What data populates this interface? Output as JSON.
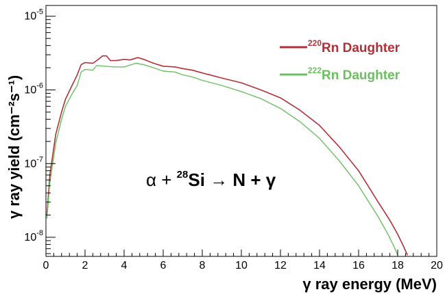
{
  "chart_data": {
    "type": "line",
    "xlabel": "γ ray energy (MeV)",
    "ylabel": "γ ray yield (cm⁻²s⁻¹)",
    "xlim": [
      0,
      20
    ],
    "ylim": [
      5.5e-09,
      1.4e-05
    ],
    "yscale": "log",
    "x_ticks": [
      0,
      2,
      4,
      6,
      8,
      10,
      12,
      14,
      16,
      18,
      20
    ],
    "y_ticks": [
      {
        "value": 1e-08,
        "base": "10",
        "exp": "-8"
      },
      {
        "value": 1e-07,
        "base": "10",
        "exp": "-7"
      },
      {
        "value": 1e-06,
        "base": "10",
        "exp": "-6"
      },
      {
        "value": 1e-05,
        "base": "10",
        "exp": "-5"
      }
    ],
    "legend_position": "top-right",
    "series": [
      {
        "name": "²²⁰Rn Daughter",
        "label_sup": "220",
        "label_text": "Rn Daughter",
        "color": "#b03038",
        "points": [
          [
            0.05,
            2e-08
          ],
          [
            0.2,
            7e-08
          ],
          [
            0.5,
            2.5e-07
          ],
          [
            0.8,
            5e-07
          ],
          [
            1.0,
            7.5e-07
          ],
          [
            1.3,
            1.1e-06
          ],
          [
            1.6,
            1.6e-06
          ],
          [
            1.8,
            2.2e-06
          ],
          [
            2.0,
            2.35e-06
          ],
          [
            2.4,
            2.3e-06
          ],
          [
            2.6,
            2.5e-06
          ],
          [
            2.9,
            2.9e-06
          ],
          [
            3.1,
            2.9e-06
          ],
          [
            3.3,
            2.5e-06
          ],
          [
            3.6,
            2.5e-06
          ],
          [
            4.0,
            2.6e-06
          ],
          [
            4.3,
            2.55e-06
          ],
          [
            4.7,
            2.75e-06
          ],
          [
            5.0,
            2.6e-06
          ],
          [
            5.5,
            2.3e-06
          ],
          [
            6.0,
            2.1e-06
          ],
          [
            6.6,
            2.05e-06
          ],
          [
            7.0,
            1.95e-06
          ],
          [
            7.5,
            1.85e-06
          ],
          [
            8.0,
            1.7e-06
          ],
          [
            9.0,
            1.45e-06
          ],
          [
            10.0,
            1.25e-06
          ],
          [
            11.0,
            1e-06
          ],
          [
            12.0,
            7.8e-07
          ],
          [
            13.0,
            5.3e-07
          ],
          [
            14.0,
            3.3e-07
          ],
          [
            15.0,
            1.7e-07
          ],
          [
            16.0,
            8e-08
          ],
          [
            17.0,
            3e-08
          ],
          [
            17.6,
            1.7e-08
          ],
          [
            18.0,
            1.1e-08
          ],
          [
            18.3,
            7.5e-09
          ],
          [
            18.5,
            5.7e-09
          ]
        ]
      },
      {
        "name": "²²²Rn Daughter",
        "label_sup": "222",
        "label_text": "Rn Daughter",
        "color": "#6abf5e",
        "points": [
          [
            0.05,
            1.8e-08
          ],
          [
            0.2,
            5.5e-08
          ],
          [
            0.5,
            1.9e-07
          ],
          [
            0.8,
            4e-07
          ],
          [
            1.0,
            6e-07
          ],
          [
            1.3,
            8.5e-07
          ],
          [
            1.6,
            1.15e-06
          ],
          [
            1.8,
            1.75e-06
          ],
          [
            2.0,
            1.9e-06
          ],
          [
            2.4,
            1.85e-06
          ],
          [
            2.6,
            2.15e-06
          ],
          [
            3.0,
            2.1e-06
          ],
          [
            3.5,
            2.05e-06
          ],
          [
            4.0,
            2.05e-06
          ],
          [
            4.6,
            2.3e-06
          ],
          [
            5.0,
            2.2e-06
          ],
          [
            5.5,
            2e-06
          ],
          [
            6.0,
            1.8e-06
          ],
          [
            6.6,
            1.75e-06
          ],
          [
            7.0,
            1.6e-06
          ],
          [
            7.5,
            1.5e-06
          ],
          [
            8.0,
            1.35e-06
          ],
          [
            9.0,
            1.15e-06
          ],
          [
            10.0,
            9.5e-07
          ],
          [
            11.0,
            7.6e-07
          ],
          [
            12.0,
            5.6e-07
          ],
          [
            13.0,
            3.7e-07
          ],
          [
            14.0,
            2.2e-07
          ],
          [
            15.0,
            1.1e-07
          ],
          [
            16.0,
            5e-08
          ],
          [
            17.0,
            1.9e-08
          ],
          [
            17.5,
            1.1e-08
          ],
          [
            17.8,
            7.6e-09
          ],
          [
            18.0,
            5.7e-09
          ]
        ]
      }
    ],
    "annotation": {
      "text_alpha": "α + ",
      "sup": "28",
      "text_rest": "Si → N + γ"
    }
  }
}
